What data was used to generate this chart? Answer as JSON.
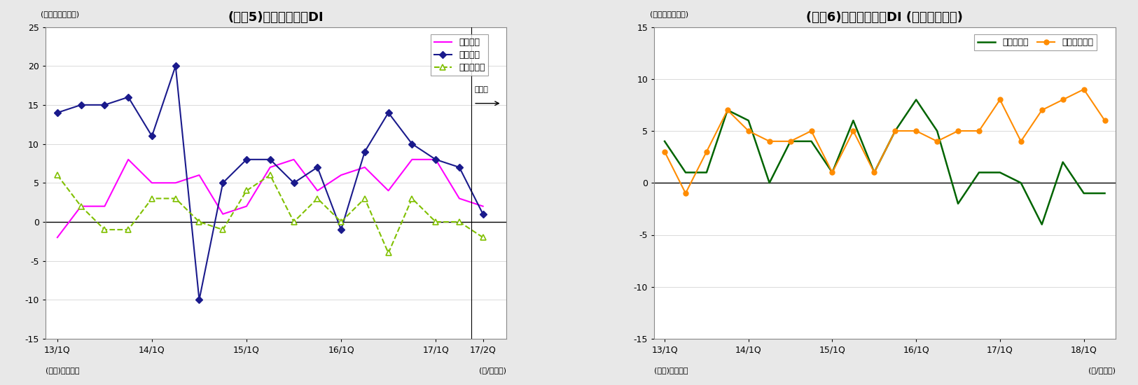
{
  "chart5": {
    "title": "(図表5)資金需要判断DI",
    "ylabel": "(ＤＩ、ポイント)",
    "ylim": [
      -15,
      25
    ],
    "yticks": [
      -15,
      -10,
      -5,
      0,
      5,
      10,
      15,
      20,
      25
    ],
    "xlabel_right": "(年/四半期)",
    "xlabel_left": "(資料)日本銀行",
    "x_labels": [
      "13/1Q",
      "14/1Q",
      "15/1Q",
      "16/1Q",
      "17/1Q",
      "17/2Q"
    ],
    "x_ticks_pos": [
      0,
      4,
      8,
      12,
      16,
      18
    ],
    "mirai_label": "見通し",
    "forecast_x": 17.5,
    "kigyou_x": [
      0,
      1,
      2,
      3,
      4,
      5,
      6,
      7,
      8,
      9,
      10,
      11,
      12,
      13,
      14,
      15,
      16,
      17,
      18
    ],
    "kigyou_y": [
      -2,
      2,
      2,
      8,
      5,
      5,
      6,
      1,
      2,
      7,
      8,
      4,
      6,
      7,
      4,
      8,
      8,
      3,
      2
    ],
    "kigyou_label": "企業向け",
    "kigyou_color": "#ff00ff",
    "kojin_x": [
      0,
      1,
      2,
      3,
      4,
      5,
      6,
      7,
      8,
      9,
      10,
      11,
      12,
      13,
      14,
      15,
      16,
      17,
      18
    ],
    "kojin_y": [
      14,
      15,
      15,
      16,
      11,
      20,
      -10,
      5,
      8,
      8,
      5,
      7,
      -1,
      9,
      14,
      10,
      8,
      7,
      1
    ],
    "kojin_label": "個人向け",
    "kojin_color": "#1a1a8c",
    "chiho_x": [
      0,
      1,
      2,
      3,
      4,
      5,
      6,
      7,
      8,
      9,
      10,
      11,
      12,
      13,
      14,
      15,
      16,
      17,
      18
    ],
    "chiho_y": [
      6,
      2,
      -1,
      -1,
      3,
      3,
      0,
      -1,
      4,
      6,
      0,
      3,
      0,
      3,
      -4,
      3,
      0,
      0,
      -2
    ],
    "chiho_label": "地公体向け",
    "chiho_color": "#80c000"
  },
  "chart6": {
    "title": "(図表6)資金需要判断DI (大・中小企業)",
    "ylabel": "(ＤＩ、ポイント)",
    "ylim": [
      -15,
      15
    ],
    "yticks": [
      -15,
      -10,
      -5,
      0,
      5,
      10,
      15
    ],
    "xlabel_right": "(年/四半期)",
    "xlabel_left": "(資料)日本銀行",
    "x_labels": [
      "13/1Q",
      "14/1Q",
      "15/1Q",
      "16/1Q",
      "17/1Q",
      "18/1Q"
    ],
    "x_ticks_pos": [
      0,
      4,
      8,
      12,
      16,
      20
    ],
    "large_x": [
      0,
      1,
      2,
      3,
      4,
      5,
      6,
      7,
      8,
      9,
      10,
      11,
      12,
      13,
      14,
      15,
      16,
      17,
      18,
      19,
      20,
      21
    ],
    "large_y": [
      4,
      1,
      1,
      7,
      6,
      0,
      4,
      4,
      1,
      6,
      1,
      5,
      8,
      5,
      -2,
      1,
      1,
      0,
      -4,
      2,
      -1,
      -1
    ],
    "large_label": "大企業向け",
    "large_color": "#006400",
    "small_x": [
      0,
      1,
      2,
      3,
      4,
      5,
      6,
      7,
      8,
      9,
      10,
      11,
      12,
      13,
      14,
      15,
      16,
      17,
      18,
      19,
      20,
      21
    ],
    "small_y": [
      3,
      -1,
      3,
      7,
      5,
      4,
      4,
      5,
      1,
      5,
      1,
      5,
      5,
      4,
      5,
      5,
      8,
      4,
      7,
      8,
      9,
      6
    ],
    "small_label": "中小企業向け",
    "small_color": "#ff8c00"
  },
  "fig_bg": "#e8e8e8",
  "plot_bg": "#ffffff",
  "grid_color": "#cccccc",
  "zero_line_color": "#000000",
  "border_color": "#888888"
}
